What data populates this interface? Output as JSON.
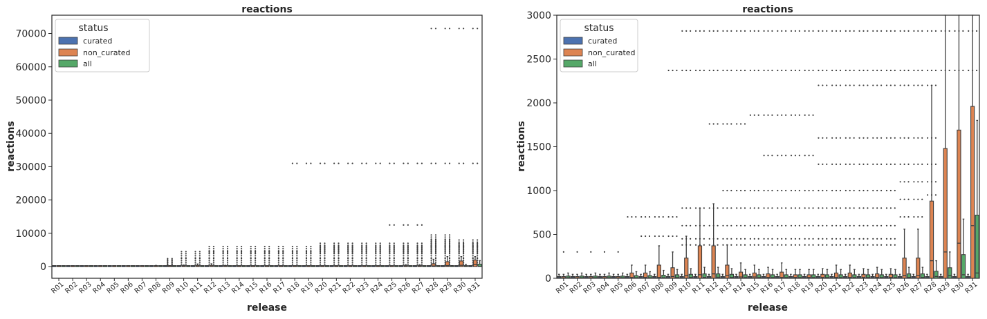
{
  "chart_data": [
    {
      "type": "box",
      "title": "reactions",
      "xlabel": "release",
      "ylabel": "reactions",
      "ylim": [
        -3500,
        75500
      ],
      "yticks": [
        0,
        10000,
        20000,
        30000,
        40000,
        50000,
        60000,
        70000
      ],
      "legend": {
        "title": "status",
        "position": "top-left"
      },
      "categories": [
        "R01",
        "R02",
        "R03",
        "R04",
        "R05",
        "R06",
        "R07",
        "R08",
        "R09",
        "R10",
        "R11",
        "R12",
        "R13",
        "R14",
        "R15",
        "R16",
        "R17",
        "R18",
        "R19",
        "R20",
        "R21",
        "R22",
        "R23",
        "R24",
        "R25",
        "R26",
        "R27",
        "R28",
        "R29",
        "R30",
        "R31"
      ],
      "series": [
        {
          "name": "curated",
          "color": "#4c72b0",
          "q1": [
            0,
            0,
            0,
            0,
            0,
            0,
            0,
            0,
            0,
            0,
            0,
            0,
            0,
            0,
            0,
            0,
            0,
            0,
            0,
            0,
            0,
            0,
            0,
            0,
            0,
            0,
            0,
            0,
            0,
            0,
            0
          ],
          "median": [
            8,
            8,
            8,
            8,
            8,
            8,
            8,
            8,
            8,
            8,
            8,
            8,
            8,
            8,
            8,
            8,
            8,
            8,
            8,
            8,
            8,
            8,
            8,
            8,
            8,
            8,
            8,
            8,
            8,
            8,
            8
          ],
          "q3": [
            20,
            20,
            20,
            20,
            20,
            20,
            20,
            20,
            20,
            20,
            20,
            20,
            20,
            20,
            20,
            20,
            20,
            20,
            20,
            20,
            20,
            20,
            20,
            20,
            20,
            20,
            20,
            20,
            20,
            20,
            20
          ],
          "whisker_high": [
            45,
            45,
            45,
            45,
            45,
            45,
            45,
            45,
            45,
            45,
            45,
            45,
            45,
            45,
            45,
            45,
            45,
            45,
            45,
            45,
            45,
            45,
            45,
            45,
            45,
            45,
            45,
            45,
            45,
            45,
            45
          ]
        },
        {
          "name": "non_curated",
          "color": "#dd8452",
          "q1": [
            0,
            0,
            0,
            0,
            0,
            0,
            0,
            0,
            0,
            0,
            0,
            0,
            0,
            0,
            0,
            0,
            0,
            0,
            0,
            0,
            0,
            0,
            0,
            0,
            0,
            0,
            0,
            0,
            0,
            0,
            0
          ],
          "median": [
            5,
            5,
            5,
            5,
            5,
            10,
            10,
            10,
            20,
            30,
            40,
            50,
            30,
            15,
            15,
            10,
            10,
            10,
            10,
            10,
            10,
            10,
            10,
            10,
            10,
            30,
            30,
            200,
            300,
            400,
            600
          ],
          "q3": [
            20,
            20,
            20,
            20,
            20,
            60,
            60,
            150,
            120,
            230,
            370,
            370,
            150,
            70,
            60,
            50,
            70,
            40,
            40,
            45,
            60,
            60,
            45,
            50,
            45,
            230,
            230,
            880,
            1480,
            1690,
            1960
          ],
          "whisker_high": [
            45,
            45,
            45,
            45,
            45,
            150,
            150,
            370,
            300,
            480,
            800,
            850,
            380,
            175,
            150,
            125,
            175,
            100,
            100,
            110,
            150,
            150,
            110,
            125,
            110,
            560,
            560,
            2200,
            3000,
            3000,
            3000
          ]
        },
        {
          "name": "all",
          "color": "#55a868",
          "q1": [
            0,
            0,
            0,
            0,
            0,
            0,
            0,
            0,
            0,
            0,
            0,
            0,
            0,
            0,
            0,
            0,
            0,
            0,
            0,
            0,
            0,
            0,
            0,
            0,
            0,
            0,
            0,
            0,
            0,
            0,
            0
          ],
          "median": [
            6,
            6,
            6,
            6,
            6,
            6,
            6,
            6,
            8,
            10,
            10,
            12,
            10,
            8,
            8,
            8,
            8,
            8,
            8,
            8,
            8,
            8,
            8,
            8,
            8,
            10,
            10,
            20,
            30,
            40,
            60
          ],
          "q3": [
            25,
            25,
            25,
            25,
            25,
            30,
            30,
            35,
            40,
            45,
            50,
            50,
            45,
            40,
            40,
            40,
            40,
            40,
            40,
            40,
            40,
            40,
            40,
            40,
            40,
            50,
            50,
            80,
            120,
            270,
            720
          ],
          "whisker_high": [
            60,
            60,
            60,
            60,
            60,
            75,
            75,
            90,
            100,
            110,
            125,
            125,
            110,
            100,
            100,
            100,
            100,
            100,
            100,
            100,
            100,
            100,
            100,
            100,
            100,
            125,
            125,
            200,
            300,
            675,
            1800
          ]
        }
      ],
      "outliers": [
        {
          "release": "R09",
          "values": [
            2000,
            2400
          ]
        },
        {
          "release": "R10",
          "values": [
            2400,
            4500
          ]
        },
        {
          "release": "R11",
          "values": [
            2400,
            4500
          ]
        },
        {
          "release": "R12",
          "values": [
            2400,
            4500,
            6000
          ]
        },
        {
          "release": "R13",
          "values": [
            2400,
            4500,
            6000
          ]
        },
        {
          "release": "R14",
          "values": [
            2400,
            4500,
            6000
          ]
        },
        {
          "release": "R15",
          "values": [
            2400,
            4500,
            6000
          ]
        },
        {
          "release": "R16",
          "values": [
            2400,
            4500,
            6000
          ]
        },
        {
          "release": "R17",
          "values": [
            2400,
            4500,
            6000
          ]
        },
        {
          "release": "R18",
          "values": [
            2400,
            4500,
            6000,
            31000
          ]
        },
        {
          "release": "R19",
          "values": [
            2400,
            4500,
            6000,
            31000
          ]
        },
        {
          "release": "R20",
          "values": [
            2400,
            4500,
            6000,
            7000,
            31000
          ]
        },
        {
          "release": "R21",
          "values": [
            2400,
            4500,
            6000,
            7000,
            31000
          ]
        },
        {
          "release": "R22",
          "values": [
            2400,
            4500,
            6000,
            7000,
            31000
          ]
        },
        {
          "release": "R23",
          "values": [
            2400,
            4500,
            6000,
            7000,
            31000
          ]
        },
        {
          "release": "R24",
          "values": [
            2400,
            4500,
            6000,
            7000,
            31000
          ]
        },
        {
          "release": "R25",
          "values": [
            2400,
            4500,
            6000,
            7000,
            12500,
            31000
          ]
        },
        {
          "release": "R26",
          "values": [
            2400,
            4500,
            6000,
            7000,
            12500,
            31000
          ]
        },
        {
          "release": "R27",
          "values": [
            2400,
            4500,
            6000,
            7000,
            12500,
            31000
          ]
        },
        {
          "release": "R28",
          "values": [
            2400,
            4500,
            6000,
            7000,
            8000,
            9500,
            31000,
            71500
          ]
        },
        {
          "release": "R29",
          "values": [
            2400,
            4500,
            6000,
            7000,
            8000,
            9500,
            31000,
            71500
          ]
        },
        {
          "release": "R30",
          "values": [
            2400,
            4500,
            6000,
            7000,
            8000,
            31000,
            71500
          ]
        },
        {
          "release": "R31",
          "values": [
            2400,
            4500,
            6000,
            7000,
            8000,
            31000,
            71500
          ]
        }
      ]
    },
    {
      "type": "box",
      "title": "reactions",
      "xlabel": "release",
      "ylabel": "reactions",
      "ylim": [
        0,
        3000
      ],
      "yticks": [
        0,
        500,
        1000,
        1500,
        2000,
        2500,
        3000
      ],
      "legend": {
        "title": "status",
        "position": "top-left"
      },
      "categories": [
        "R01",
        "R02",
        "R03",
        "R04",
        "R05",
        "R06",
        "R07",
        "R08",
        "R09",
        "R10",
        "R11",
        "R12",
        "R13",
        "R14",
        "R15",
        "R16",
        "R17",
        "R18",
        "R19",
        "R20",
        "R21",
        "R22",
        "R23",
        "R24",
        "R25",
        "R26",
        "R27",
        "R28",
        "R29",
        "R30",
        "R31"
      ],
      "note_same_series_as_left": true,
      "outlier_levels_per_release": [
        [
          300
        ],
        [
          300
        ],
        [
          300
        ],
        [
          300
        ],
        [
          300
        ],
        [
          700
        ],
        [
          480,
          700
        ],
        [
          480,
          700
        ],
        [
          480,
          700,
          2370
        ],
        [
          380,
          450,
          600,
          800,
          2370,
          2820
        ],
        [
          380,
          450,
          600,
          800,
          2370,
          2820
        ],
        [
          380,
          450,
          600,
          800,
          1760,
          2370,
          2820
        ],
        [
          380,
          450,
          600,
          800,
          1000,
          1760,
          2370,
          2820
        ],
        [
          380,
          450,
          600,
          800,
          1000,
          1760,
          2370,
          2820
        ],
        [
          380,
          450,
          600,
          800,
          1000,
          1860,
          2370,
          2820
        ],
        [
          380,
          450,
          600,
          800,
          1000,
          1400,
          1860,
          2370,
          2820
        ],
        [
          380,
          450,
          600,
          800,
          1000,
          1400,
          1860,
          2370,
          2820
        ],
        [
          380,
          450,
          600,
          800,
          1000,
          1400,
          1860,
          2370,
          2820
        ],
        [
          380,
          450,
          600,
          800,
          1000,
          1400,
          1860,
          2370,
          2820
        ],
        [
          380,
          450,
          600,
          800,
          1000,
          1300,
          1600,
          2200,
          2370,
          2820
        ],
        [
          380,
          450,
          600,
          800,
          1000,
          1300,
          1600,
          2200,
          2370,
          2820
        ],
        [
          380,
          450,
          600,
          800,
          1000,
          1300,
          1600,
          2200,
          2370,
          2820
        ],
        [
          380,
          450,
          600,
          800,
          1000,
          1300,
          1600,
          2200,
          2370,
          2820
        ],
        [
          380,
          450,
          600,
          800,
          1000,
          1300,
          1600,
          2200,
          2370,
          2820
        ],
        [
          380,
          450,
          600,
          800,
          1000,
          1300,
          1600,
          2200,
          2370,
          2820
        ],
        [
          700,
          900,
          1100,
          1300,
          1600,
          2200,
          2370,
          2820
        ],
        [
          700,
          900,
          1100,
          1300,
          1600,
          2200,
          2370,
          2820
        ],
        [
          950,
          1100,
          1300,
          1600,
          2200,
          2370,
          2820
        ],
        [
          2370,
          2820
        ],
        [
          2370,
          2820
        ],
        [
          2370,
          2820
        ]
      ]
    }
  ]
}
